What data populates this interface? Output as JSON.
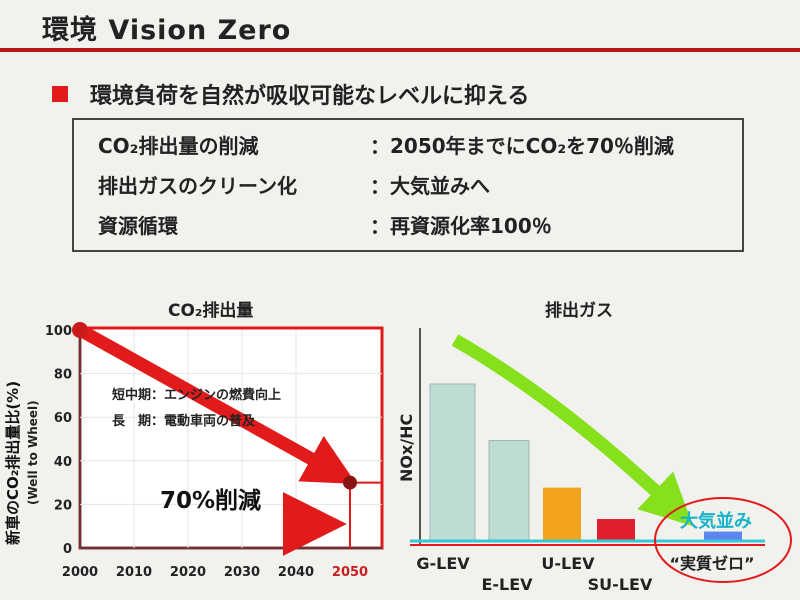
{
  "title": "環境 Vision Zero",
  "headline": "環境負荷を自然が吸収可能なレベルに抑える",
  "goals": [
    {
      "label": "CO₂排出量の削減",
      "value": "：2050年までにCO₂を70％削減"
    },
    {
      "label": "排出ガスのクリーン化",
      "value": "：大気並みへ"
    },
    {
      "label": "資源循環",
      "value": "：再資源化率100％"
    }
  ],
  "colors": {
    "accent_red": "#e11b1b",
    "arrow_green": "#86e01c",
    "teal_line": "#36c7d6"
  },
  "chart_data": [
    {
      "type": "line",
      "title": "CO₂排出量",
      "ylabel": "新車のCO₂排出量比(%)",
      "ylabel_sub": "(Well to Wheel)",
      "x": [
        2000,
        2050
      ],
      "series": [
        {
          "values": [
            100,
            30
          ]
        }
      ],
      "xticks": [
        "2000",
        "2010",
        "2020",
        "2030",
        "2040",
        "2050"
      ],
      "yticks": [
        "0",
        "20",
        "40",
        "60",
        "80",
        "100"
      ],
      "xlim": [
        2000,
        2050
      ],
      "ylim": [
        0,
        100
      ],
      "target_level": 30,
      "annotations": [
        "短中期：エンジンの燃費向上",
        "長　期：電動車両の普及"
      ],
      "reduction_label": "70%削減"
    },
    {
      "type": "bar",
      "title": "排出ガス",
      "ylabel": "NOx/HC",
      "categories": [
        "G-LEV",
        "E-LEV",
        "U-LEV",
        "SU-LEV",
        "“実質ゼロ”"
      ],
      "values": [
        100,
        64,
        34,
        14,
        6
      ],
      "bar_colors": [
        "#bcdcd4",
        "#bcdcd4",
        "#f2a41f",
        "#e0202e",
        "#5d86ef"
      ],
      "target_label": "大気並み"
    }
  ]
}
